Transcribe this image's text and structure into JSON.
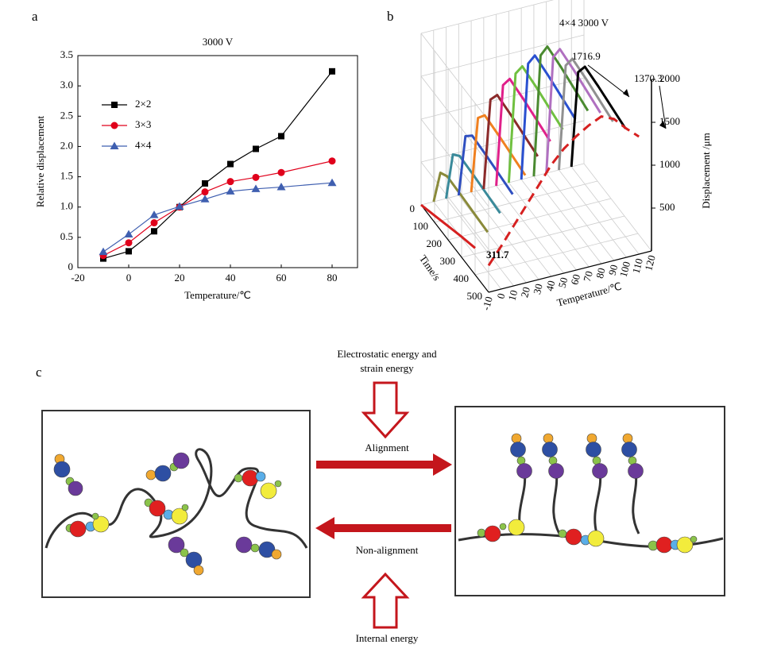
{
  "chart_data": [
    {
      "type": "line",
      "panel": "a",
      "title": "3000 V",
      "xlabel": "Temperature/℃",
      "ylabel": "Relative displacement",
      "x": [
        -10,
        0,
        10,
        20,
        30,
        40,
        50,
        60,
        80
      ],
      "xlim": [
        -20,
        90
      ],
      "xticks": [
        -20,
        0,
        20,
        40,
        60,
        80
      ],
      "ylim": [
        0,
        3.5
      ],
      "yticks": [
        0,
        0.5,
        {
          "value": 1,
          "label": "1.0"
        },
        1.5,
        {
          "value": 2,
          "label": "2.0"
        },
        2.5,
        {
          "value": 3,
          "label": "3.0"
        },
        3.5
      ],
      "legend": "upper left",
      "series": [
        {
          "name": "2×2",
          "color": "#000000",
          "marker": "square",
          "values": [
            0.15,
            0.27,
            0.6,
            1.0,
            1.39,
            1.71,
            1.96,
            2.17,
            3.24
          ]
        },
        {
          "name": "3×3",
          "color": "#e0001b",
          "marker": "circle",
          "values": [
            0.2,
            0.41,
            0.74,
            1.0,
            1.25,
            1.42,
            1.49,
            1.57,
            1.76
          ]
        },
        {
          "name": "4×4",
          "color": "#3f5fb0",
          "marker": "triangle",
          "values": [
            0.26,
            0.55,
            0.87,
            1.01,
            1.13,
            1.26,
            1.3,
            1.33,
            1.4
          ]
        }
      ]
    },
    {
      "type": "line3d",
      "panel": "b",
      "title": "4×4  3000 V",
      "xlabel": "Time/s",
      "ylabel": "Temperature/℃",
      "zlabel": "Displacement /μm",
      "x": [
        0,
        50,
        100,
        200,
        300,
        400
      ],
      "xlim": [
        0,
        500
      ],
      "xticks": [
        0,
        100,
        200,
        300,
        400,
        500
      ],
      "ylim": [
        -10,
        120
      ],
      "yticks": [
        -10,
        0,
        10,
        20,
        30,
        40,
        50,
        60,
        70,
        80,
        90,
        100,
        110,
        120
      ],
      "zlim": [
        0,
        2000
      ],
      "zticks": [
        500,
        1000,
        1500,
        2000
      ],
      "temperatures": [
        -10,
        0,
        10,
        20,
        30,
        40,
        50,
        60,
        70,
        80,
        90,
        100,
        110
      ],
      "series": [
        {
          "color": "#d62020",
          "values": [
            0,
            40,
            80,
            160,
            240,
            311.7
          ]
        },
        {
          "color": "#8a8a3a",
          "values": [
            0,
            440,
            500,
            490,
            475,
            460
          ]
        },
        {
          "color": "#3a8a9a",
          "values": [
            0,
            616,
            700,
            686,
            665,
            644
          ]
        },
        {
          "color": "#2f4fc0",
          "values": [
            0,
            792,
            900,
            882,
            855,
            828
          ]
        },
        {
          "color": "#f08020",
          "values": [
            0,
            968,
            1100,
            1078,
            1045,
            1012
          ]
        },
        {
          "color": "#8b2a2a",
          "values": [
            0,
            1144,
            1300,
            1274,
            1235,
            1196
          ]
        },
        {
          "color": "#e0208a",
          "values": [
            0,
            1276,
            1450,
            1421,
            1378,
            1334
          ]
        },
        {
          "color": "#70c040",
          "values": [
            0,
            1373,
            1560,
            1529,
            1482,
            1435
          ]
        },
        {
          "color": "#2a50d0",
          "values": [
            0,
            1452,
            1650,
            1617,
            1568,
            1518
          ]
        },
        {
          "color": "#4a8a30",
          "values": [
            0,
            1511,
            1716.9,
            1683,
            1631,
            1580
          ]
        },
        {
          "color": "#b070c0",
          "values": [
            0,
            1452,
            1650,
            1617,
            1568,
            1518
          ]
        },
        {
          "color": "#909090",
          "values": [
            0,
            1320,
            1500,
            1470,
            1425,
            1380
          ]
        },
        {
          "color": "#000000",
          "values": [
            0,
            1206,
            1370.3,
            1343,
            1302,
            1261
          ]
        }
      ],
      "peak_curve": {
        "color": "#d62020",
        "values": [
          311.7,
          500,
          700,
          900,
          1100,
          1300,
          1450,
          1560,
          1650,
          1716.9,
          1650,
          1500,
          1370.3
        ]
      },
      "annotations": [
        "1716.9",
        "1370.3",
        "311.7"
      ]
    }
  ],
  "diagram": {
    "label": "c",
    "top_energy": [
      "Electrostatic energy and",
      "strain energy"
    ],
    "alignment": "Alignment",
    "non_alignment": "Non-alignment",
    "bottom_energy": "Internal energy"
  }
}
